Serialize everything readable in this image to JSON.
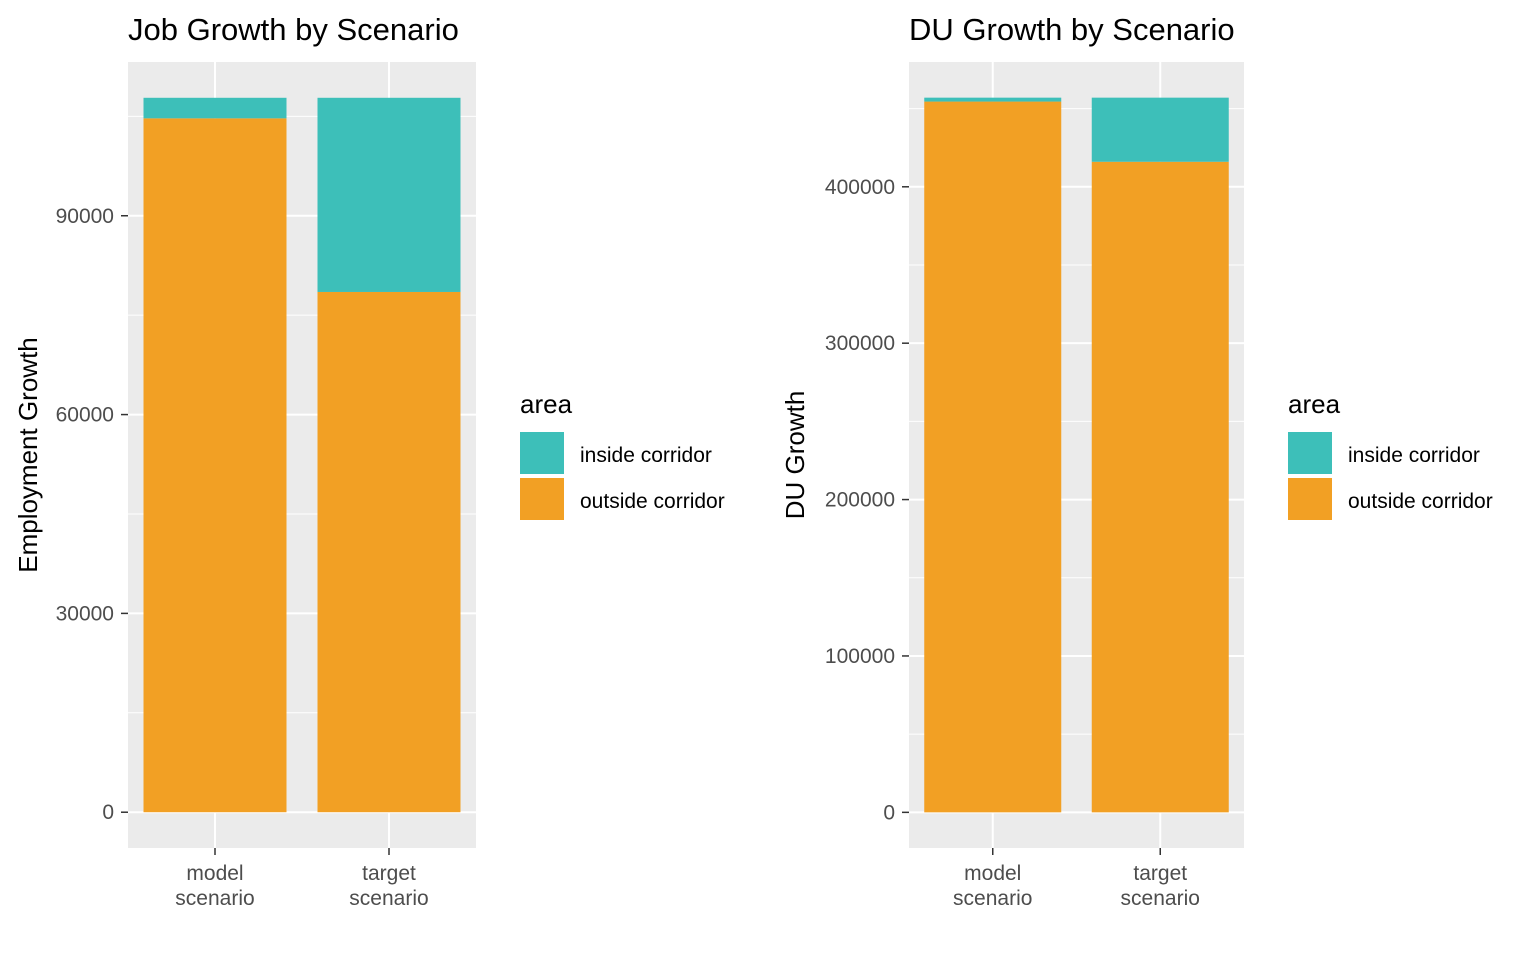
{
  "chart_data": [
    {
      "type": "bar",
      "stacked": true,
      "title": "Job Growth by Scenario",
      "xlabel": "",
      "ylabel": "Employment Growth",
      "categories": [
        "model\nscenario",
        "target\nscenario"
      ],
      "series": [
        {
          "name": "outside corridor",
          "values": [
            104700,
            78500
          ]
        },
        {
          "name": "inside corridor",
          "values": [
            3100,
            29300
          ]
        }
      ],
      "ylim": [
        -5400,
        113200
      ],
      "yticks": [
        0,
        30000,
        60000,
        90000
      ],
      "ytick_labels": [
        "0",
        "30000",
        "60000",
        "90000"
      ],
      "legend": {
        "title": "area",
        "position": "right"
      },
      "grid": true
    },
    {
      "type": "bar",
      "stacked": true,
      "title": "DU Growth by Scenario",
      "xlabel": "",
      "ylabel": "DU Growth",
      "categories": [
        "model\nscenario",
        "target\nscenario"
      ],
      "series": [
        {
          "name": "outside corridor",
          "values": [
            454500,
            416000
          ]
        },
        {
          "name": "inside corridor",
          "values": [
            2500,
            41000
          ]
        }
      ],
      "ylim": [
        -22800,
        479800
      ],
      "yticks": [
        0,
        100000,
        200000,
        300000,
        400000
      ],
      "ytick_labels": [
        "0",
        "100000",
        "200000",
        "300000",
        "400000"
      ],
      "legend": {
        "title": "area",
        "position": "right"
      },
      "grid": true
    }
  ],
  "colors": {
    "inside corridor": "#3dbfb9",
    "outside corridor": "#f2a024",
    "panel": "#ebebeb",
    "grid": "#ffffff"
  }
}
